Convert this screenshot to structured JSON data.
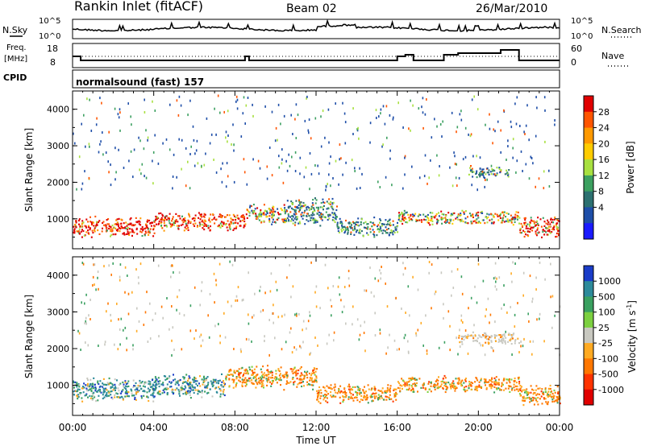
{
  "header": {
    "station": "Rankin Inlet (fitACF)",
    "beam": "Beam 02",
    "date": "26/Mar/2010"
  },
  "noise_panel": {
    "left_label": "N.Sky",
    "right_label": "N.Search",
    "left_ticks": [
      "10^5",
      "10^0"
    ],
    "right_ticks": [
      "10^5",
      "10^0"
    ]
  },
  "freq_panel": {
    "left_label_1": "Freq.",
    "left_label_2": "[MHz]",
    "right_label": "Nave",
    "left_ticks": [
      "18",
      "8"
    ],
    "right_ticks": [
      "60",
      "0"
    ]
  },
  "cpid_panel": {
    "label": "CPID",
    "program": "normalsound (fast) 157"
  },
  "chart_data": [
    {
      "type": "heatmap",
      "name": "power",
      "ylabel": "Slant Range [km]",
      "xlabel": "Time UT",
      "x_range_hours": [
        0,
        24
      ],
      "ylim_km": [
        180,
        4500
      ],
      "x_ticks": [
        "00:00",
        "04:00",
        "08:00",
        "12:00",
        "16:00",
        "20:00",
        "00:00"
      ],
      "y_ticks": [
        "1000",
        "2000",
        "3000",
        "4000"
      ],
      "colorbar_label": "Power [dB]",
      "colorbar_ticks": [
        "28",
        "24",
        "20",
        "16",
        "12",
        "8",
        "4"
      ],
      "colorbar_colors": [
        "#e00000",
        "#ff5500",
        "#ff9900",
        "#ffcc00",
        "#a8e040",
        "#3ca060",
        "#2c7070",
        "#1e4ea8",
        "#1a1aff"
      ],
      "bands": [
        {
          "start_h": 0.0,
          "end_h": 4.0,
          "center_km": 800,
          "width_km": 420,
          "level": "high"
        },
        {
          "start_h": 4.0,
          "end_h": 8.5,
          "center_km": 950,
          "width_km": 380,
          "level": "high"
        },
        {
          "start_h": 8.5,
          "end_h": 10.5,
          "center_km": 1150,
          "width_km": 420,
          "level": "mid"
        },
        {
          "start_h": 10.5,
          "end_h": 13.0,
          "center_km": 1200,
          "width_km": 600,
          "level": "low"
        },
        {
          "start_h": 13.0,
          "end_h": 16.0,
          "center_km": 800,
          "width_km": 400,
          "level": "low"
        },
        {
          "start_h": 16.0,
          "end_h": 22.0,
          "center_km": 1050,
          "width_km": 300,
          "level": "mid"
        },
        {
          "start_h": 19.5,
          "end_h": 21.5,
          "center_km": 2300,
          "width_km": 250,
          "level": "low"
        },
        {
          "start_h": 22.0,
          "end_h": 24.0,
          "center_km": 800,
          "width_km": 450,
          "level": "high"
        }
      ]
    },
    {
      "type": "heatmap",
      "name": "velocity",
      "ylabel": "Slant Range [km]",
      "xlabel": "Time UT",
      "x_range_hours": [
        0,
        24
      ],
      "ylim_km": [
        180,
        4500
      ],
      "x_ticks": [
        "00:00",
        "04:00",
        "08:00",
        "12:00",
        "16:00",
        "20:00",
        "00:00"
      ],
      "y_ticks": [
        "1000",
        "2000",
        "3000",
        "4000"
      ],
      "colorbar_label": "Velocity [m s-1]",
      "colorbar_label_main": "Velocity [m s",
      "colorbar_label_sup": "-1",
      "colorbar_label_end": "]",
      "colorbar_ticks": [
        "1000",
        "500",
        "100",
        "25",
        "-25",
        "-100",
        "-500",
        "-1000"
      ],
      "colorbar_colors": [
        "#1a3cc8",
        "#2d8a9a",
        "#3aa060",
        "#7cd040",
        "#c8c8c0",
        "#ffaa22",
        "#ff7700",
        "#ff3300",
        "#e00000"
      ],
      "bands": [
        {
          "start_h": 0.0,
          "end_h": 4.0,
          "center_km": 900,
          "width_km": 520,
          "level": "toward"
        },
        {
          "start_h": 4.0,
          "end_h": 7.5,
          "center_km": 1000,
          "width_km": 500,
          "level": "toward"
        },
        {
          "start_h": 7.5,
          "end_h": 12.0,
          "center_km": 1250,
          "width_km": 500,
          "level": "away"
        },
        {
          "start_h": 12.0,
          "end_h": 16.0,
          "center_km": 800,
          "width_km": 400,
          "level": "away"
        },
        {
          "start_h": 16.0,
          "end_h": 22.0,
          "center_km": 1050,
          "width_km": 350,
          "level": "away"
        },
        {
          "start_h": 19.0,
          "end_h": 22.0,
          "center_km": 2300,
          "width_km": 250,
          "level": "slow"
        },
        {
          "start_h": 22.0,
          "end_h": 24.0,
          "center_km": 750,
          "width_km": 450,
          "level": "away"
        }
      ]
    }
  ]
}
